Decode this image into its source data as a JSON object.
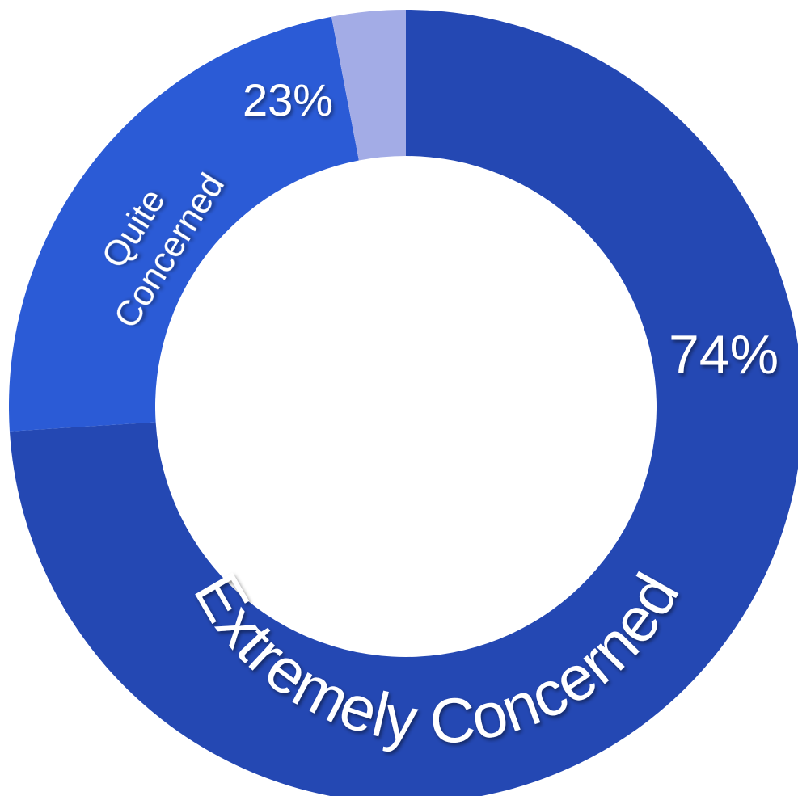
{
  "chart_data": {
    "type": "pie",
    "donut": true,
    "title": "",
    "start_angle_deg": 0,
    "direction": "clockwise",
    "slices": [
      {
        "name": "Extremely Concerned",
        "value": 74,
        "percent_label": "74%",
        "color": "#2448b3"
      },
      {
        "name": "Quite Concerned",
        "value": 23,
        "percent_label": "23%",
        "color": "#2b5bd6"
      },
      {
        "name": "",
        "value": 3,
        "percent_label": "",
        "color": "#a3ace6"
      }
    ],
    "legend": "none"
  },
  "labels": {
    "extremely_concerned": "Extremely Concerned",
    "extremely_concerned_pct": "74%",
    "quite_line1": "Quite",
    "quite_line2": "Concerned",
    "quite_concerned_pct": "23%"
  }
}
